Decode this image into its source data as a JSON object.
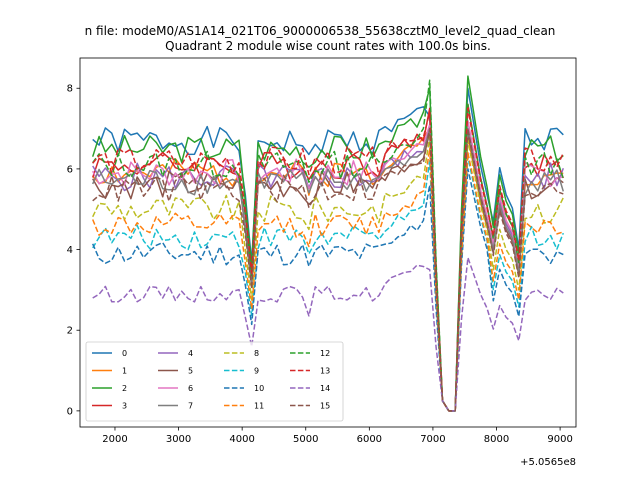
{
  "chart_data": {
    "type": "line",
    "suptitle": "n file: modeM0/AS1A14_021T06_9000006538_55638cztM0_level2_quad_clean",
    "title": "Quadrant 2 module wise count rates with 100.0s bins.",
    "xlabel": "",
    "ylabel": "",
    "x_offset_label": "+5.0565e8",
    "xlim": [
      1450,
      9250
    ],
    "ylim": [
      -0.4,
      8.75
    ],
    "xticks": [
      2000,
      3000,
      4000,
      5000,
      6000,
      7000,
      8000,
      9000
    ],
    "yticks": [
      0,
      2,
      4,
      6,
      8
    ],
    "x_start": 1650,
    "x_step": 100,
    "legend": {
      "placement": "lower-left",
      "ncol": 4
    },
    "series": [
      {
        "name": "0",
        "color": "#1f77b4",
        "dash": "solid",
        "base": 6.7,
        "amp": 0.35,
        "seed": 1,
        "peak": 7.3,
        "sp": 8.0
      },
      {
        "name": "1",
        "color": "#ff7f0e",
        "dash": "solid",
        "base": 5.9,
        "amp": 0.35,
        "seed": 2,
        "peak": 7.0,
        "sp": 6.8
      },
      {
        "name": "2",
        "color": "#2ca02c",
        "dash": "solid",
        "base": 6.5,
        "amp": 0.35,
        "seed": 3,
        "peak": 8.0,
        "sp": 8.3
      },
      {
        "name": "3",
        "color": "#d62728",
        "dash": "solid",
        "base": 6.1,
        "amp": 0.35,
        "seed": 4,
        "peak": 7.5,
        "sp": 7.6
      },
      {
        "name": "4",
        "color": "#9467bd",
        "dash": "solid",
        "base": 5.8,
        "amp": 0.35,
        "seed": 5,
        "peak": 7.0,
        "sp": 7.0
      },
      {
        "name": "5",
        "color": "#8c564b",
        "dash": "solid",
        "base": 5.6,
        "amp": 0.35,
        "seed": 6,
        "peak": 6.9,
        "sp": 6.9
      },
      {
        "name": "6",
        "color": "#e377c2",
        "dash": "solid",
        "base": 5.9,
        "amp": 0.35,
        "seed": 7,
        "peak": 7.1,
        "sp": 7.2
      },
      {
        "name": "7",
        "color": "#7f7f7f",
        "dash": "solid",
        "base": 5.7,
        "amp": 0.35,
        "seed": 8,
        "peak": 7.0,
        "sp": 7.0
      },
      {
        "name": "8",
        "color": "#bcbd22",
        "dash": "dashed",
        "base": 5.0,
        "amp": 0.35,
        "seed": 9,
        "peak": 6.8,
        "sp": 6.7
      },
      {
        "name": "9",
        "color": "#17becf",
        "dash": "dashed",
        "base": 4.3,
        "amp": 0.3,
        "seed": 10,
        "peak": 6.2,
        "sp": 6.3
      },
      {
        "name": "10",
        "color": "#1f77b4",
        "dash": "dashed",
        "base": 3.9,
        "amp": 0.3,
        "seed": 11,
        "peak": 5.6,
        "sp": 6.0
      },
      {
        "name": "11",
        "color": "#ff7f0e",
        "dash": "dashed",
        "base": 4.6,
        "amp": 0.3,
        "seed": 12,
        "peak": 6.5,
        "sp": 6.4
      },
      {
        "name": "12",
        "color": "#2ca02c",
        "dash": "dashed",
        "base": 6.1,
        "amp": 0.35,
        "seed": 13,
        "peak": 8.2,
        "sp": 7.6
      },
      {
        "name": "13",
        "color": "#d62728",
        "dash": "dashed",
        "base": 6.2,
        "amp": 0.35,
        "seed": 14,
        "peak": 7.4,
        "sp": 7.5
      },
      {
        "name": "14",
        "color": "#9467bd",
        "dash": "dashed",
        "base": 2.9,
        "amp": 0.2,
        "seed": 15,
        "peak": 3.5,
        "sp": 3.8
      },
      {
        "name": "15",
        "color": "#8c564b",
        "dash": "dashed",
        "base": 5.5,
        "amp": 0.35,
        "seed": 16,
        "peak": 7.0,
        "sp": 7.0
      }
    ]
  }
}
